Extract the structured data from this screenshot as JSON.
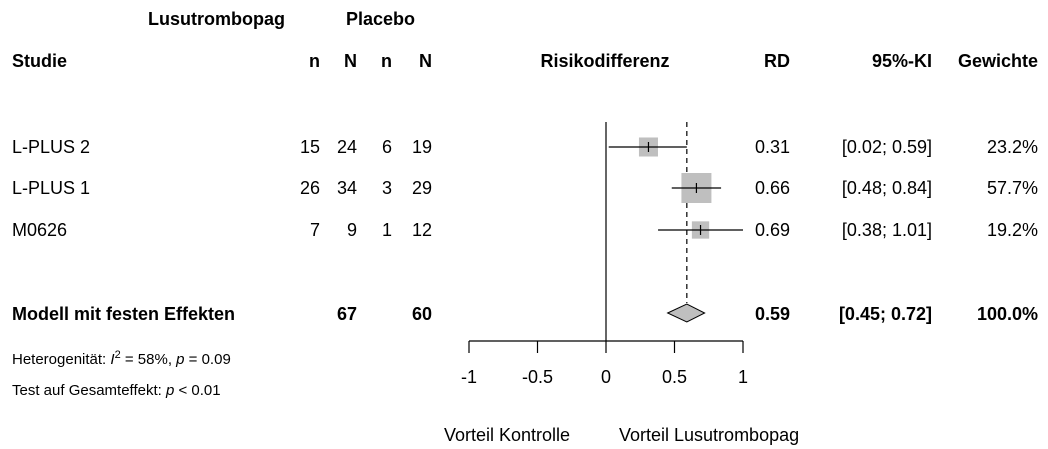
{
  "header": {
    "group_treatment": "Lusutrombopag",
    "group_control": "Placebo",
    "col_study": "Studie",
    "col_n": "n",
    "col_N": "N",
    "col_plot": "Risikodifferenz",
    "col_rd": "RD",
    "col_ci": "95%-KI",
    "col_weight": "Gewichte"
  },
  "studies": [
    {
      "name": "L-PLUS 2",
      "n_t": "15",
      "N_t": "24",
      "n_c": "6",
      "N_c": "19",
      "rd_text": "0.31",
      "ci_text": "[0.02; 0.59]",
      "weight_text": "23.2%"
    },
    {
      "name": "L-PLUS 1",
      "n_t": "26",
      "N_t": "34",
      "n_c": "3",
      "N_c": "29",
      "rd_text": "0.66",
      "ci_text": "[0.48; 0.84]",
      "weight_text": "57.7%"
    },
    {
      "name": "M0626",
      "n_t": "7",
      "N_t": "9",
      "n_c": "1",
      "N_c": "12",
      "rd_text": "0.69",
      "ci_text": "[0.38; 1.01]",
      "weight_text": "19.2%"
    }
  ],
  "pooled": {
    "name": "Modell mit festen Effekten",
    "N_t": "67",
    "N_c": "60",
    "rd_text": "0.59",
    "ci_text": "[0.45; 0.72]",
    "weight_text": "100.0%"
  },
  "heterogeneity": {
    "prefix": "Heterogenität: ",
    "i_symbol": "I",
    "sup": "2",
    "mid": " = 58%, ",
    "p_symbol": "p",
    "p_value": " = 0.09"
  },
  "overall_test": {
    "prefix": "Test auf Gesamteffekt: ",
    "p_symbol": "p",
    "p_value": " < 0.01"
  },
  "axis_label_left": "Vorteil Kontrolle",
  "axis_label_right": "Vorteil Lusutrombopag",
  "colors": {
    "square": "#bfbfbf",
    "diamond": "#bfbfbf",
    "line": "#000000"
  },
  "chart_data": {
    "type": "forest",
    "xlim": [
      -1,
      1
    ],
    "ticks": [
      "-1",
      "-0.5",
      "0",
      "0.5",
      "1"
    ],
    "tick_values": [
      -1,
      -0.5,
      0,
      0.5,
      1
    ],
    "null_line": 0,
    "pooled_line": 0.59,
    "studies": [
      {
        "name": "L-PLUS 2",
        "rd": 0.31,
        "lo": 0.02,
        "hi": 0.59,
        "weight": 23.2
      },
      {
        "name": "L-PLUS 1",
        "rd": 0.66,
        "lo": 0.48,
        "hi": 0.84,
        "weight": 57.7
      },
      {
        "name": "M0626",
        "rd": 0.69,
        "lo": 0.38,
        "hi": 1.01,
        "weight": 19.2
      }
    ],
    "pooled": {
      "rd": 0.59,
      "lo": 0.45,
      "hi": 0.72
    }
  }
}
